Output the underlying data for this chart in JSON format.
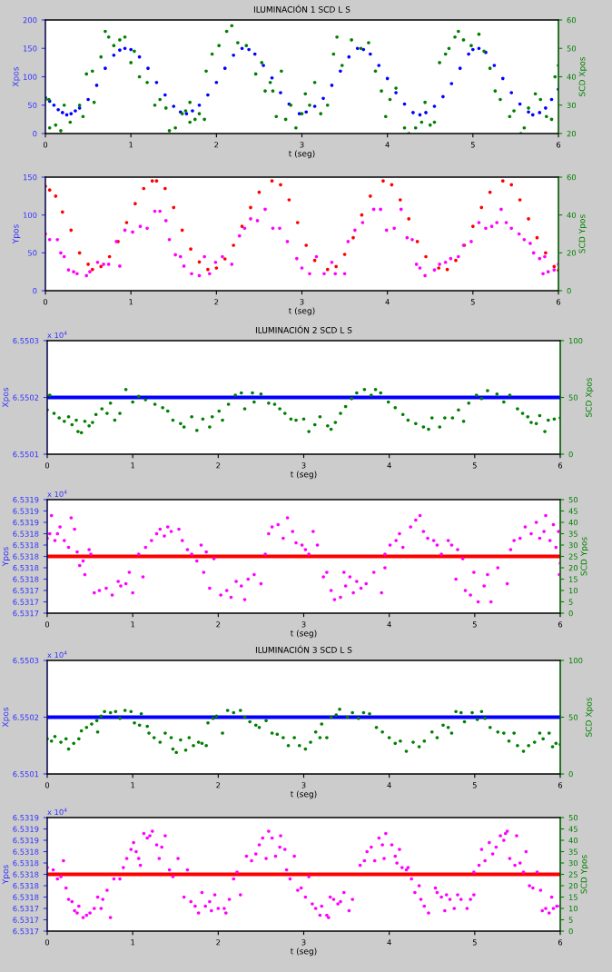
{
  "chart_data": [
    {
      "type": "scatter",
      "title": "ILUMINACIÓN 1 SCD L S",
      "xlabel": "t (seg)",
      "ylabel": "Xpos",
      "y2label": "SCD Xpos",
      "marker": "circle",
      "grid": false,
      "xlim": [
        0,
        6
      ],
      "xticks": [
        0,
        1,
        2,
        3,
        4,
        5,
        6
      ],
      "ylim": [
        0,
        200
      ],
      "yticks": [
        0,
        50,
        100,
        150,
        200
      ],
      "y2lim": [
        20,
        60
      ],
      "y2ticks": [
        20,
        30,
        40,
        50,
        60
      ],
      "series": [
        {
          "color": "#0000ff",
          "x": [
            0,
            0.05,
            0.1,
            0.15,
            0.2,
            0.25,
            0.3,
            0.35,
            0.4,
            0.5,
            0.6,
            0.7,
            0.8,
            0.87,
            0.93,
            1.0,
            1.1,
            1.2,
            1.3,
            1.4,
            1.5,
            1.58,
            1.65,
            1.72,
            1.8,
            1.9,
            2.0,
            2.1,
            2.2,
            2.3,
            2.38,
            2.45,
            2.55,
            2.65,
            2.75,
            2.85,
            2.97,
            3.05,
            3.15,
            3.25,
            3.35,
            3.45,
            3.55,
            3.65,
            3.72,
            3.8,
            3.9,
            4.0,
            4.1,
            4.2,
            4.3,
            4.38,
            4.45,
            4.55,
            4.65,
            4.75,
            4.85,
            4.95,
            5.0,
            5.07,
            5.15,
            5.25,
            5.35,
            5.45,
            5.55,
            5.65,
            5.7,
            5.78,
            5.85,
            5.92,
            6.0
          ],
          "values": [
            63,
            57,
            50,
            42,
            37,
            33,
            35,
            40,
            45,
            60,
            85,
            115,
            138,
            147,
            150,
            148,
            135,
            115,
            90,
            68,
            48,
            38,
            35,
            40,
            50,
            68,
            90,
            115,
            138,
            150,
            148,
            140,
            120,
            98,
            72,
            52,
            35,
            38,
            48,
            62,
            85,
            110,
            135,
            150,
            148,
            140,
            120,
            97,
            72,
            52,
            37,
            33,
            37,
            48,
            65,
            88,
            115,
            140,
            148,
            150,
            143,
            120,
            97,
            72,
            52,
            38,
            33,
            37,
            45,
            60,
            78
          ]
        },
        {
          "color": "#007f00",
          "axis": "y2",
          "x": [
            0,
            0.04,
            0.05,
            0.12,
            0.18,
            0.22,
            0.29,
            0.4,
            0.44,
            0.48,
            0.55,
            0.57,
            0.65,
            0.7,
            0.74,
            0.8,
            0.87,
            0.93,
            1.0,
            1.04,
            1.1,
            1.19,
            1.28,
            1.34,
            1.41,
            1.45,
            1.52,
            1.6,
            1.64,
            1.69,
            1.69,
            1.75,
            1.8,
            1.86,
            1.88,
            1.95,
            2.03,
            2.12,
            2.18,
            2.25,
            2.35,
            2.46,
            2.53,
            2.57,
            2.63,
            2.66,
            2.7,
            2.76,
            2.81,
            2.87,
            2.93,
            3.0,
            3.04,
            3.09,
            3.15,
            3.22,
            3.3,
            3.37,
            3.41,
            3.47,
            3.58,
            3.69,
            3.78,
            3.86,
            3.93,
            3.98,
            4.03,
            4.1,
            4.2,
            4.25,
            4.33,
            4.4,
            4.44,
            4.5,
            4.55,
            4.61,
            4.68,
            4.72,
            4.79,
            4.83,
            4.89,
            4.98,
            5.07,
            5.13,
            5.2,
            5.26,
            5.32,
            5.43,
            5.48,
            5.56,
            5.6,
            5.65,
            5.73,
            5.79,
            5.86,
            5.92,
            5.96,
            6.0
          ],
          "values": [
            32,
            32,
            22,
            23,
            21,
            30,
            24,
            30,
            26,
            41,
            42,
            31,
            47,
            56,
            54,
            51,
            53,
            54,
            45,
            49,
            40,
            38,
            30,
            32,
            29,
            21,
            22,
            27,
            28,
            31,
            24,
            25,
            27,
            25,
            42,
            48,
            51,
            56,
            58,
            52,
            51,
            41,
            45,
            35,
            38,
            35,
            26,
            42,
            25,
            30,
            22,
            27,
            34,
            30,
            38,
            27,
            30,
            48,
            54,
            44,
            53,
            50,
            52,
            42,
            35,
            26,
            32,
            36,
            22,
            20,
            22,
            24,
            31,
            23,
            24,
            45,
            48,
            50,
            54,
            56,
            53,
            51,
            55,
            49,
            43,
            35,
            32,
            26,
            28,
            20,
            22,
            29,
            34,
            32,
            26,
            25,
            40,
            44
          ]
        }
      ]
    },
    {
      "type": "scatter",
      "xlabel": "t (seg)",
      "ylabel": "Ypos",
      "y2label": "SCD Ypos",
      "marker": "circle",
      "grid": false,
      "xlim": [
        0,
        6
      ],
      "xticks": [
        0,
        1,
        2,
        3,
        4,
        5,
        6
      ],
      "ylim": [
        0,
        150
      ],
      "yticks": [
        0,
        50,
        100,
        150
      ],
      "y2lim": [
        0,
        60
      ],
      "y2ticks": [
        0,
        20,
        40,
        60
      ],
      "series": [
        {
          "color": "#ff0000",
          "x": [
            0,
            0.05,
            0.12,
            0.2,
            0.3,
            0.4,
            0.5,
            0.55,
            0.65,
            0.75,
            0.85,
            0.95,
            1.05,
            1.15,
            1.25,
            1.3,
            1.4,
            1.5,
            1.6,
            1.7,
            1.8,
            1.9,
            2.0,
            2.1,
            2.2,
            2.3,
            2.4,
            2.5,
            2.65,
            2.75,
            2.85,
            2.95,
            3.05,
            3.15,
            3.3,
            3.4,
            3.5,
            3.6,
            3.7,
            3.8,
            3.95,
            4.05,
            4.15,
            4.25,
            4.35,
            4.45,
            4.6,
            4.7,
            4.8,
            4.9,
            5.0,
            5.1,
            5.2,
            5.35,
            5.45,
            5.55,
            5.65,
            5.75,
            5.85,
            5.95,
            6.0
          ],
          "values": [
            138,
            133,
            125,
            104,
            80,
            50,
            35,
            28,
            32,
            45,
            65,
            90,
            115,
            135,
            145,
            145,
            135,
            110,
            80,
            55,
            38,
            28,
            30,
            42,
            60,
            85,
            110,
            130,
            145,
            140,
            120,
            90,
            60,
            40,
            28,
            32,
            48,
            70,
            100,
            125,
            145,
            140,
            120,
            95,
            65,
            45,
            30,
            28,
            40,
            60,
            85,
            110,
            130,
            145,
            140,
            120,
            95,
            70,
            50,
            32,
            27
          ]
        },
        {
          "color": "#ff00ff",
          "axis": "y2",
          "x": [
            0,
            0.05,
            0.14,
            0.18,
            0.22,
            0.27,
            0.33,
            0.37,
            0.48,
            0.52,
            0.61,
            0.68,
            0.74,
            0.83,
            0.87,
            0.93,
            1.02,
            1.11,
            1.19,
            1.28,
            1.34,
            1.41,
            1.45,
            1.52,
            1.58,
            1.62,
            1.71,
            1.8,
            1.86,
            1.92,
            1.99,
            2.07,
            2.18,
            2.27,
            2.33,
            2.4,
            2.48,
            2.57,
            2.66,
            2.74,
            2.83,
            2.94,
            3.0,
            3.09,
            3.17,
            3.26,
            3.35,
            3.39,
            3.5,
            3.54,
            3.62,
            3.71,
            3.84,
            3.92,
            3.99,
            4.08,
            4.16,
            4.23,
            4.29,
            4.34,
            4.38,
            4.44,
            4.55,
            4.61,
            4.68,
            4.74,
            4.83,
            4.89,
            4.98,
            5.07,
            5.15,
            5.22,
            5.28,
            5.33,
            5.39,
            5.45,
            5.54,
            5.6,
            5.67,
            5.71,
            5.78,
            5.84,
            5.82,
            5.88,
            5.95,
            6.0
          ],
          "values": [
            30,
            27,
            27,
            20,
            18,
            11,
            10,
            9,
            8,
            10,
            15,
            14,
            14,
            26,
            13,
            32,
            31,
            34,
            33,
            42,
            42,
            37,
            27,
            19,
            18,
            13,
            9,
            8,
            18,
            9,
            15,
            18,
            14,
            29,
            33,
            38,
            37,
            43,
            33,
            33,
            26,
            17,
            12,
            9,
            18,
            9,
            15,
            9,
            9,
            26,
            32,
            36,
            43,
            43,
            32,
            33,
            43,
            28,
            27,
            14,
            12,
            8,
            11,
            14,
            15,
            17,
            18,
            24,
            26,
            36,
            33,
            34,
            36,
            43,
            36,
            33,
            30,
            27,
            25,
            20,
            17,
            18,
            9,
            10,
            11,
            14
          ]
        }
      ]
    },
    {
      "type": "scatter",
      "title": "ILUMINACIÓN 2 SCD L S",
      "xlabel": "t (seg)",
      "ylabel": "Xpos",
      "y2label": "SCD Xpos",
      "marker": "circle",
      "grid": false,
      "annotations": [
        "x 10$^{4}$"
      ],
      "xlim": [
        0,
        6
      ],
      "xticks": [
        0,
        1,
        2,
        3,
        4,
        5,
        6
      ],
      "ylim": [
        6.5501,
        6.5503
      ],
      "yticks": [
        6.5501,
        6.5502,
        6.5503
      ],
      "y2lim": [
        0,
        100
      ],
      "y2ticks": [
        0,
        50,
        100
      ],
      "series": [
        {
          "type": "line",
          "marker": "none",
          "color": "#0000ff",
          "x": [
            0,
            6
          ],
          "values": [
            6.5502,
            6.5502
          ]
        },
        {
          "color": "#007f00",
          "axis": "y2",
          "x": [
            0,
            0.03,
            0.08,
            0.14,
            0.2,
            0.25,
            0.29,
            0.34,
            0.36,
            0.4,
            0.44,
            0.49,
            0.53,
            0.57,
            0.64,
            0.7,
            0.74,
            0.79,
            0.85,
            0.92,
            1.0,
            1.07,
            1.15,
            1.26,
            1.35,
            1.41,
            1.47,
            1.56,
            1.6,
            1.69,
            1.75,
            1.82,
            1.9,
            1.93,
            2.01,
            2.05,
            2.12,
            2.2,
            2.27,
            2.31,
            2.4,
            2.42,
            2.5,
            2.59,
            2.66,
            2.72,
            2.78,
            2.85,
            2.91,
            3.0,
            3.06,
            3.13,
            3.19,
            3.28,
            3.32,
            3.37,
            3.43,
            3.49,
            3.56,
            3.62,
            3.71,
            3.79,
            3.84,
            3.9,
            3.99,
            4.07,
            4.16,
            4.22,
            4.31,
            4.4,
            4.46,
            4.5,
            4.59,
            4.65,
            4.74,
            4.81,
            4.87,
            4.93,
            5.02,
            5.08,
            5.15,
            5.26,
            5.34,
            5.41,
            5.5,
            5.56,
            5.62,
            5.66,
            5.72,
            5.76,
            5.82,
            5.86,
            5.93,
            6.0
          ],
          "values": [
            39,
            52,
            36,
            32,
            29,
            33,
            26,
            30,
            20,
            19,
            29,
            25,
            28,
            35,
            40,
            36,
            45,
            30,
            36,
            57,
            46,
            51,
            48,
            44,
            41,
            38,
            30,
            27,
            24,
            33,
            21,
            31,
            24,
            33,
            38,
            30,
            44,
            52,
            54,
            40,
            54,
            46,
            53,
            45,
            44,
            40,
            36,
            31,
            30,
            31,
            20,
            26,
            33,
            25,
            22,
            28,
            36,
            42,
            49,
            54,
            57,
            52,
            57,
            54,
            46,
            41,
            35,
            30,
            27,
            24,
            22,
            32,
            24,
            32,
            32,
            39,
            29,
            45,
            52,
            49,
            56,
            53,
            46,
            52,
            40,
            36,
            33,
            28,
            27,
            34,
            20,
            30,
            31,
            32
          ]
        }
      ]
    },
    {
      "type": "scatter",
      "xlabel": "t (seg)",
      "ylabel": "Ypos",
      "y2label": "SCD Ypos",
      "marker": "circle",
      "grid": false,
      "annotations": [
        "x 10$^{4}$"
      ],
      "xlim": [
        0,
        6
      ],
      "xticks": [
        0,
        1,
        2,
        3,
        4,
        5,
        6
      ],
      "ylim": [
        6.5317,
        6.5319
      ],
      "yticks": [
        {
          "value": 6.5317,
          "label": "6.5317"
        },
        {
          "value": 6.53172,
          "label": "6.5317"
        },
        {
          "value": 6.53174,
          "label": "6.5317"
        },
        {
          "value": 6.53176,
          "label": "6.5318"
        },
        {
          "value": 6.53178,
          "label": "6.5318"
        },
        {
          "value": 6.5318,
          "label": "6.5318"
        },
        {
          "value": 6.53182,
          "label": "6.5318"
        },
        {
          "value": 6.53184,
          "label": "6.5318"
        },
        {
          "value": 6.53186,
          "label": "6.5319"
        },
        {
          "value": 6.53188,
          "label": "6.5319"
        },
        {
          "value": 6.5319,
          "label": "6.5319"
        }
      ],
      "y2lim": [
        0,
        50
      ],
      "y2ticks": [
        0,
        5,
        10,
        15,
        20,
        25,
        30,
        35,
        40,
        45,
        50
      ],
      "series": [
        {
          "type": "line",
          "marker": "none",
          "color": "#ff0000",
          "x": [
            0,
            6
          ],
          "values": [
            6.5318,
            6.5318
          ]
        },
        {
          "color": "#ff00ff",
          "axis": "y2",
          "x": [
            0,
            0.03,
            0.05,
            0.09,
            0.12,
            0.15,
            0.2,
            0.25,
            0.28,
            0.32,
            0.35,
            0.38,
            0.42,
            0.44,
            0.49,
            0.51,
            0.55,
            0.61,
            0.69,
            0.76,
            0.83,
            0.86,
            0.92,
            0.96,
            1.0,
            1.07,
            1.12,
            1.15,
            1.22,
            1.28,
            1.32,
            1.37,
            1.41,
            1.45,
            1.54,
            1.58,
            1.64,
            1.69,
            1.75,
            1.8,
            1.83,
            1.86,
            1.9,
            1.95,
            2.03,
            2.1,
            2.15,
            2.21,
            2.27,
            2.31,
            2.35,
            2.42,
            2.5,
            2.55,
            2.59,
            2.63,
            2.7,
            2.76,
            2.81,
            2.87,
            2.91,
            2.98,
            3.02,
            3.06,
            3.11,
            3.16,
            3.23,
            3.27,
            3.32,
            3.36,
            3.43,
            3.47,
            3.49,
            3.54,
            3.58,
            3.62,
            3.67,
            3.73,
            3.82,
            3.91,
            3.95,
            3.95,
            4.01,
            4.08,
            4.12,
            4.16,
            4.25,
            4.31,
            4.36,
            4.4,
            4.45,
            4.52,
            4.56,
            4.61,
            4.69,
            4.73,
            4.78,
            4.8,
            4.86,
            4.89,
            4.95,
            4.99,
            5.04,
            5.11,
            5.15,
            5.19,
            5.27,
            5.38,
            5.42,
            5.46,
            5.53,
            5.59,
            5.66,
            5.72,
            5.76,
            5.81,
            5.83,
            5.88,
            5.92,
            5.95,
            5.98,
            5.99,
            6.0
          ],
          "values": [
            33,
            35,
            43,
            32,
            35,
            38,
            32,
            29,
            42,
            37,
            27,
            21,
            23,
            17,
            28,
            26,
            9,
            10,
            11,
            8,
            14,
            12,
            13,
            18,
            9,
            26,
            16,
            29,
            32,
            35,
            37,
            34,
            38,
            36,
            37,
            32,
            28,
            26,
            23,
            30,
            18,
            27,
            11,
            24,
            8,
            10,
            7,
            14,
            12,
            6,
            15,
            17,
            13,
            26,
            35,
            38,
            39,
            33,
            42,
            36,
            31,
            30,
            28,
            26,
            36,
            30,
            16,
            18,
            10,
            6,
            7,
            18,
            12,
            16,
            9,
            14,
            11,
            13,
            18,
            9,
            26,
            20,
            30,
            32,
            35,
            29,
            38,
            41,
            43,
            36,
            33,
            32,
            30,
            26,
            32,
            30,
            15,
            28,
            24,
            10,
            8,
            18,
            5,
            12,
            17,
            5,
            20,
            13,
            28,
            32,
            33,
            38,
            35,
            40,
            33,
            36,
            43,
            32,
            39,
            29,
            36,
            17,
            22
          ]
        }
      ]
    },
    {
      "type": "scatter",
      "title": "ILUMINACIÓN 3 SCD L S",
      "xlabel": "t (seg)",
      "ylabel": "Xpos",
      "y2label": "SCD Xpos",
      "marker": "circle",
      "grid": false,
      "annotations": [
        "x 10$^{4}$"
      ],
      "xlim": [
        0,
        6
      ],
      "xticks": [
        0,
        1,
        2,
        3,
        4,
        5,
        6
      ],
      "ylim": [
        6.5501,
        6.5503
      ],
      "yticks": [
        6.5501,
        6.5502,
        6.5503
      ],
      "y2lim": [
        0,
        100
      ],
      "y2ticks": [
        0,
        50,
        100
      ],
      "series": [
        {
          "type": "line",
          "marker": "none",
          "color": "#0000ff",
          "x": [
            0,
            6
          ],
          "values": [
            6.5502,
            6.5502
          ]
        },
        {
          "color": "#007f00",
          "axis": "y2",
          "x": [
            0,
            0.05,
            0.09,
            0.16,
            0.22,
            0.25,
            0.31,
            0.37,
            0.4,
            0.46,
            0.52,
            0.58,
            0.59,
            0.63,
            0.67,
            0.74,
            0.8,
            0.85,
            0.91,
            0.98,
            1.02,
            1.08,
            1.1,
            1.17,
            1.19,
            1.25,
            1.32,
            1.38,
            1.45,
            1.47,
            1.51,
            1.56,
            1.62,
            1.66,
            1.71,
            1.77,
            1.81,
            1.86,
            1.88,
            1.94,
            1.98,
            2.05,
            2.11,
            2.18,
            2.26,
            2.31,
            2.37,
            2.44,
            2.48,
            2.56,
            2.63,
            2.69,
            2.76,
            2.82,
            2.89,
            2.95,
            3.02,
            3.08,
            3.14,
            3.19,
            3.21,
            3.27,
            3.32,
            3.38,
            3.42,
            3.51,
            3.57,
            3.64,
            3.7,
            3.77,
            3.85,
            3.92,
            4.0,
            4.07,
            4.13,
            4.2,
            4.28,
            4.35,
            4.41,
            4.5,
            4.56,
            4.63,
            4.69,
            4.73,
            4.78,
            4.84,
            4.88,
            4.97,
            5.03,
            5.08,
            5.12,
            5.18,
            5.27,
            5.34,
            5.4,
            5.46,
            5.5,
            5.57,
            5.63,
            5.7,
            5.76,
            5.8,
            5.87,
            5.91,
            5.95,
            6.0
          ],
          "values": [
            31,
            29,
            33,
            28,
            31,
            22,
            27,
            31,
            38,
            41,
            44,
            47,
            37,
            51,
            55,
            54,
            55,
            49,
            56,
            55,
            45,
            43,
            53,
            42,
            36,
            32,
            28,
            36,
            32,
            22,
            19,
            30,
            21,
            32,
            25,
            28,
            27,
            25,
            45,
            49,
            51,
            36,
            56,
            54,
            56,
            50,
            46,
            43,
            41,
            47,
            36,
            35,
            32,
            25,
            32,
            25,
            22,
            28,
            37,
            32,
            44,
            32,
            50,
            52,
            57,
            50,
            54,
            49,
            54,
            53,
            41,
            37,
            32,
            27,
            29,
            20,
            28,
            24,
            29,
            37,
            32,
            43,
            41,
            36,
            55,
            54,
            46,
            54,
            48,
            55,
            49,
            41,
            37,
            36,
            29,
            36,
            25,
            20,
            25,
            28,
            36,
            31,
            36,
            24,
            27,
            26
          ]
        }
      ]
    },
    {
      "type": "scatter",
      "xlabel": "t (seg)",
      "ylabel": "Ypos",
      "y2label": "SCD Ypos",
      "marker": "circle",
      "grid": false,
      "annotations": [
        "x 10$^{4}$"
      ],
      "xlim": [
        0,
        6
      ],
      "xticks": [
        0,
        1,
        2,
        3,
        4,
        5,
        6
      ],
      "ylim": [
        6.5317,
        6.5319
      ],
      "yticks": [
        {
          "value": 6.5317,
          "label": "6.5317"
        },
        {
          "value": 6.53172,
          "label": "6.5317"
        },
        {
          "value": 6.53174,
          "label": "6.5317"
        },
        {
          "value": 6.53176,
          "label": "6.5318"
        },
        {
          "value": 6.53178,
          "label": "6.5318"
        },
        {
          "value": 6.5318,
          "label": "6.5318"
        },
        {
          "value": 6.53182,
          "label": "6.5318"
        },
        {
          "value": 6.53184,
          "label": "6.5318"
        },
        {
          "value": 6.53186,
          "label": "6.5319"
        },
        {
          "value": 6.53188,
          "label": "6.5319"
        },
        {
          "value": 6.5319,
          "label": "6.5319"
        }
      ],
      "y2lim": [
        0,
        50
      ],
      "y2ticks": [
        0,
        5,
        10,
        15,
        20,
        25,
        30,
        35,
        40,
        45,
        50
      ],
      "series": [
        {
          "type": "line",
          "marker": "none",
          "color": "#ff0000",
          "x": [
            0,
            6
          ],
          "values": [
            6.5318,
            6.5318
          ]
        },
        {
          "color": "#ff00ff",
          "axis": "y2",
          "x": [
            0,
            0.07,
            0.12,
            0.16,
            0.19,
            0.22,
            0.25,
            0.29,
            0.32,
            0.35,
            0.37,
            0.42,
            0.46,
            0.5,
            0.55,
            0.59,
            0.63,
            0.65,
            0.7,
            0.74,
            0.78,
            0.85,
            0.89,
            0.93,
            0.98,
            1.01,
            1.04,
            1.07,
            1.09,
            1.13,
            1.17,
            1.2,
            1.23,
            1.28,
            1.31,
            1.34,
            1.38,
            1.43,
            1.47,
            1.53,
            1.6,
            1.64,
            1.68,
            1.73,
            1.77,
            1.81,
            1.85,
            1.9,
            1.92,
            1.96,
            2.0,
            2.07,
            2.09,
            2.13,
            2.18,
            2.22,
            2.26,
            2.33,
            2.39,
            2.44,
            2.48,
            2.52,
            2.56,
            2.59,
            2.63,
            2.67,
            2.72,
            2.73,
            2.78,
            2.8,
            2.84,
            2.89,
            2.93,
            2.97,
            3.02,
            3.06,
            3.1,
            3.14,
            3.19,
            3.21,
            3.27,
            3.29,
            3.31,
            3.35,
            3.4,
            3.43,
            3.47,
            3.53,
            3.57,
            3.66,
            3.71,
            3.74,
            3.79,
            3.83,
            3.88,
            3.92,
            3.94,
            3.96,
            4.03,
            4.07,
            4.09,
            4.12,
            4.15,
            4.2,
            4.22,
            4.26,
            4.3,
            4.35,
            4.37,
            4.41,
            4.46,
            4.54,
            4.56,
            4.61,
            4.65,
            4.67,
            4.71,
            4.76,
            4.8,
            4.84,
            4.91,
            4.95,
            4.99,
            4.99,
            5.05,
            5.08,
            5.12,
            5.17,
            5.21,
            5.25,
            5.3,
            5.34,
            5.36,
            5.38,
            5.41,
            5.47,
            5.49,
            5.53,
            5.57,
            5.6,
            5.64,
            5.68,
            5.73,
            5.77,
            5.79,
            5.83,
            5.87,
            5.9,
            5.92,
            5.96,
            6.0
          ],
          "values": [
            28,
            27,
            23,
            24,
            31,
            19,
            14,
            13,
            9,
            8,
            11,
            6,
            7,
            8,
            10,
            15,
            10,
            14,
            18,
            6,
            23,
            23,
            28,
            32,
            36,
            39,
            35,
            32,
            29,
            43,
            41,
            42,
            44,
            38,
            32,
            37,
            42,
            27,
            24,
            32,
            15,
            27,
            13,
            11,
            8,
            17,
            11,
            13,
            9,
            16,
            10,
            10,
            8,
            14,
            23,
            26,
            16,
            33,
            31,
            34,
            38,
            41,
            32,
            44,
            41,
            33,
            37,
            42,
            36,
            27,
            23,
            33,
            18,
            19,
            15,
            24,
            12,
            10,
            7,
            11,
            7,
            6,
            15,
            14,
            12,
            13,
            17,
            9,
            14,
            29,
            31,
            35,
            37,
            31,
            41,
            38,
            32,
            43,
            38,
            33,
            30,
            36,
            28,
            27,
            28,
            23,
            17,
            20,
            14,
            11,
            8,
            19,
            17,
            15,
            9,
            16,
            14,
            10,
            16,
            14,
            10,
            14,
            16,
            26,
            29,
            36,
            31,
            39,
            34,
            37,
            42,
            40,
            43,
            44,
            32,
            29,
            42,
            30,
            26,
            35,
            20,
            19,
            26,
            18,
            9,
            10,
            8,
            15,
            10,
            11,
            11
          ]
        }
      ]
    }
  ]
}
